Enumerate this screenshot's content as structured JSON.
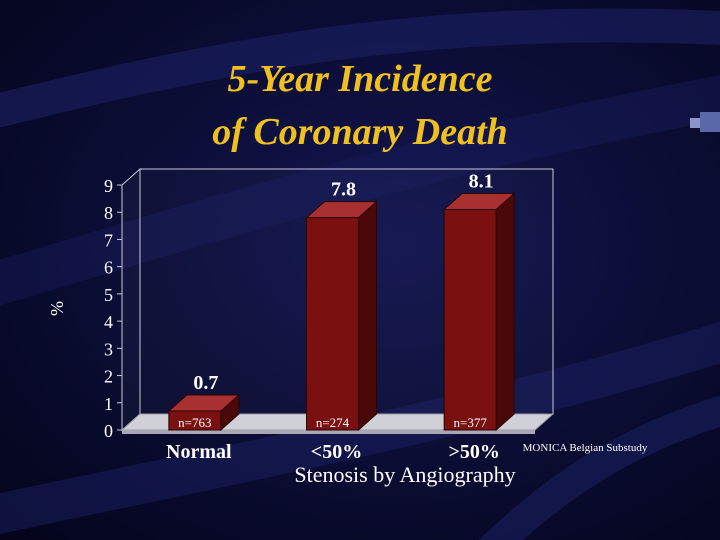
{
  "slide": {
    "title_line1": "5-Year Incidence",
    "title_line2": "of Coronary Death",
    "source_note": "MONICA Belgian Substudy"
  },
  "colors": {
    "background": "#07082a",
    "title": "#f0c020",
    "bar_front": "#7a1010",
    "bar_side": "#4a0808",
    "bar_top": "#a83030",
    "value_label": "#ffffff"
  },
  "chart_data": {
    "type": "bar",
    "categories": [
      "Normal",
      "<50%",
      ">50%"
    ],
    "values": [
      0.7,
      7.8,
      8.1
    ],
    "sample_sizes": [
      "n=763",
      "n=274",
      "n=377"
    ],
    "xlabel": "Stenosis by Angiography",
    "ylabel": "%",
    "ylim": [
      0,
      9
    ],
    "yticks": [
      "0",
      "1",
      "2",
      "3",
      "4",
      "5",
      "6",
      "7",
      "8",
      "9"
    ],
    "grid": false,
    "style": "3d"
  }
}
